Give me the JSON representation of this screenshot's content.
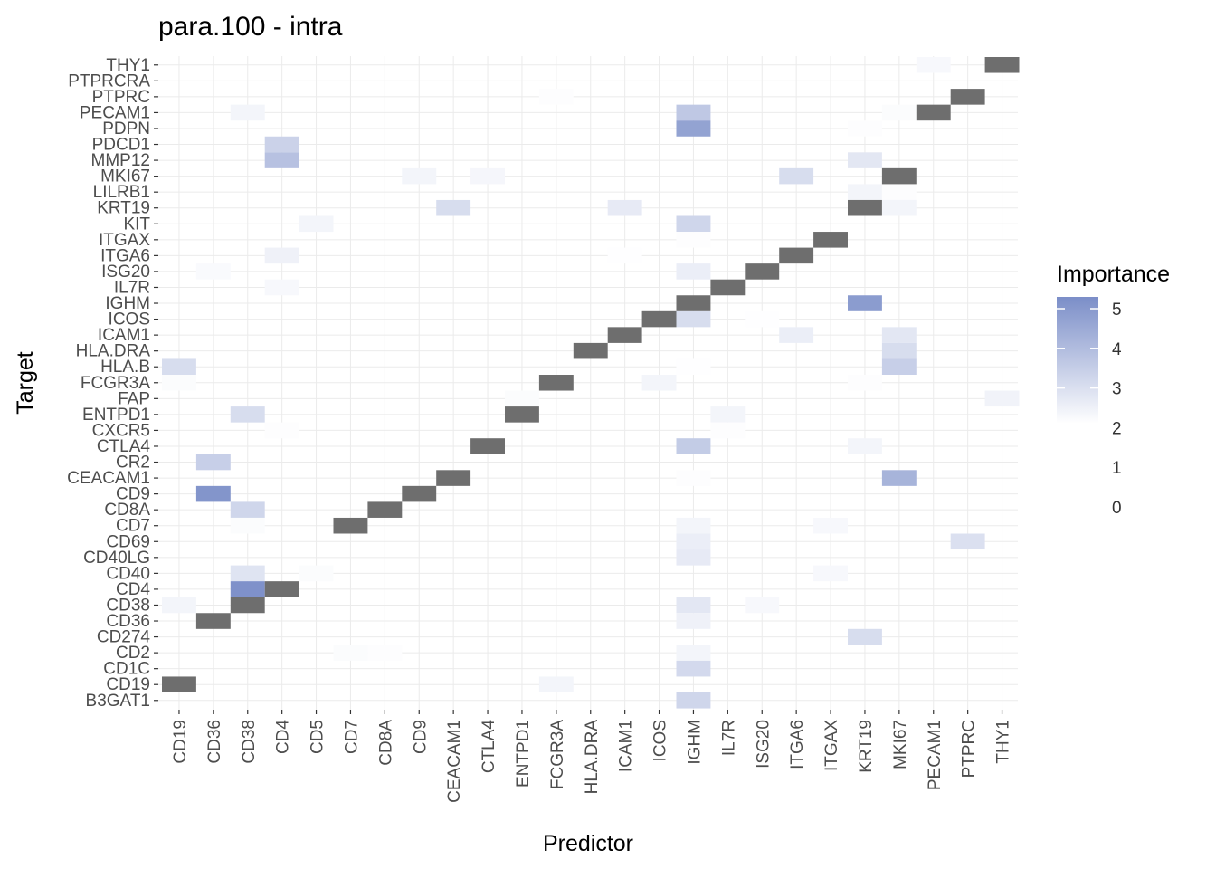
{
  "chart_data": {
    "type": "heatmap",
    "title": "para.100 - intra",
    "xlabel": "Predictor",
    "ylabel": "Target",
    "x_categories": [
      "CD19",
      "CD36",
      "CD38",
      "CD4",
      "CD5",
      "CD7",
      "CD8A",
      "CD9",
      "CEACAM1",
      "CTLA4",
      "ENTPD1",
      "FCGR3A",
      "HLA.DRA",
      "ICAM1",
      "ICOS",
      "IGHM",
      "IL7R",
      "ISG20",
      "ITGA6",
      "ITGAX",
      "KRT19",
      "MKI67",
      "PECAM1",
      "PTPRC",
      "THY1"
    ],
    "y_categories": [
      "THY1",
      "PTPRCRA",
      "PTPRC",
      "PECAM1",
      "PDPN",
      "PDCD1",
      "MMP12",
      "MKI67",
      "LILRB1",
      "KRT19",
      "KIT",
      "ITGAX",
      "ITGA6",
      "ISG20",
      "IL7R",
      "IGHM",
      "ICOS",
      "ICAM1",
      "HLA.DRA",
      "HLA.B",
      "FCGR3A",
      "FAP",
      "ENTPD1",
      "CXCR5",
      "CTLA4",
      "CR2",
      "CEACAM1",
      "CD9",
      "CD8A",
      "CD7",
      "CD69",
      "CD40LG",
      "CD40",
      "CD4",
      "CD38",
      "CD36",
      "CD274",
      "CD2",
      "CD1C",
      "CD19",
      "B3GAT1"
    ],
    "legend": {
      "title": "Importance",
      "ticks": [
        5,
        4,
        3,
        2,
        1,
        0
      ],
      "gradient_min": 2,
      "gradient_max": 5.3,
      "color_low": "#ffffff",
      "color_high": "#7b8ec8",
      "self_color": "#6e6e6e",
      "position": "right"
    },
    "grid": true,
    "self_pairs": [
      [
        "THY1",
        "THY1"
      ],
      [
        "PTPRC",
        "PTPRC"
      ],
      [
        "PECAM1",
        "PECAM1"
      ],
      [
        "MKI67",
        "MKI67"
      ],
      [
        "KRT19",
        "KRT19"
      ],
      [
        "ITGAX",
        "ITGAX"
      ],
      [
        "ITGA6",
        "ITGA6"
      ],
      [
        "ISG20",
        "ISG20"
      ],
      [
        "IL7R",
        "IL7R"
      ],
      [
        "IGHM",
        "IGHM"
      ],
      [
        "ICOS",
        "ICOS"
      ],
      [
        "ICAM1",
        "ICAM1"
      ],
      [
        "HLA.DRA",
        "HLA.DRA"
      ],
      [
        "FCGR3A",
        "FCGR3A"
      ],
      [
        "ENTPD1",
        "ENTPD1"
      ],
      [
        "CTLA4",
        "CTLA4"
      ],
      [
        "CEACAM1",
        "CEACAM1"
      ],
      [
        "CD9",
        "CD9"
      ],
      [
        "CD8A",
        "CD8A"
      ],
      [
        "CD7",
        "CD7"
      ],
      [
        "CD4",
        "CD4"
      ],
      [
        "CD38",
        "CD38"
      ],
      [
        "CD36",
        "CD36"
      ],
      [
        "CD19",
        "CD19"
      ]
    ],
    "cells": [
      {
        "x": "PECAM1",
        "y": "THY1",
        "value": 2.2
      },
      {
        "x": "FCGR3A",
        "y": "PTPRC",
        "value": 2.05
      },
      {
        "x": "CD38",
        "y": "PECAM1",
        "value": 2.3
      },
      {
        "x": "IGHM",
        "y": "PECAM1",
        "value": 3.6
      },
      {
        "x": "MKI67",
        "y": "PECAM1",
        "value": 2.1
      },
      {
        "x": "IGHM",
        "y": "PDPN",
        "value": 4.7
      },
      {
        "x": "KRT19",
        "y": "PDPN",
        "value": 2.05
      },
      {
        "x": "CD4",
        "y": "PDCD1",
        "value": 3.3
      },
      {
        "x": "CD4",
        "y": "MMP12",
        "value": 3.8
      },
      {
        "x": "KRT19",
        "y": "MMP12",
        "value": 2.7
      },
      {
        "x": "CD9",
        "y": "MKI67",
        "value": 2.3
      },
      {
        "x": "CTLA4",
        "y": "MKI67",
        "value": 2.25
      },
      {
        "x": "ITGA6",
        "y": "MKI67",
        "value": 3.0
      },
      {
        "x": "KRT19",
        "y": "LILRB1",
        "value": 2.3
      },
      {
        "x": "MKI67",
        "y": "LILRB1",
        "value": 2.05
      },
      {
        "x": "CEACAM1",
        "y": "KRT19",
        "value": 3.0
      },
      {
        "x": "ICAM1",
        "y": "KRT19",
        "value": 2.6
      },
      {
        "x": "MKI67",
        "y": "KRT19",
        "value": 2.3
      },
      {
        "x": "CD5",
        "y": "KIT",
        "value": 2.3
      },
      {
        "x": "IGHM",
        "y": "KIT",
        "value": 3.2
      },
      {
        "x": "IGHM",
        "y": "ITGAX",
        "value": 2.05
      },
      {
        "x": "CD4",
        "y": "ITGA6",
        "value": 2.4
      },
      {
        "x": "ICAM1",
        "y": "ITGA6",
        "value": 2.02
      },
      {
        "x": "CD36",
        "y": "ISG20",
        "value": 2.15
      },
      {
        "x": "IGHM",
        "y": "ISG20",
        "value": 2.5
      },
      {
        "x": "CD4",
        "y": "IL7R",
        "value": 2.2
      },
      {
        "x": "KRT19",
        "y": "IGHM",
        "value": 4.9
      },
      {
        "x": "IGHM",
        "y": "ICOS",
        "value": 3.0
      },
      {
        "x": "ISG20",
        "y": "ICOS",
        "value": 2.02
      },
      {
        "x": "ITGA6",
        "y": "ICAM1",
        "value": 2.5
      },
      {
        "x": "MKI67",
        "y": "ICAM1",
        "value": 2.7
      },
      {
        "x": "MKI67",
        "y": "HLA.DRA",
        "value": 3.0
      },
      {
        "x": "CD19",
        "y": "HLA.B",
        "value": 3.0
      },
      {
        "x": "MKI67",
        "y": "HLA.B",
        "value": 3.4
      },
      {
        "x": "IGHM",
        "y": "HLA.B",
        "value": 2.02
      },
      {
        "x": "CD19",
        "y": "FCGR3A",
        "value": 2.1
      },
      {
        "x": "ICOS",
        "y": "FCGR3A",
        "value": 2.3
      },
      {
        "x": "KRT19",
        "y": "FCGR3A",
        "value": 2.05
      },
      {
        "x": "THY1",
        "y": "FAP",
        "value": 2.35
      },
      {
        "x": "ENTPD1",
        "y": "FAP",
        "value": 2.1
      },
      {
        "x": "CD38",
        "y": "ENTPD1",
        "value": 3.0
      },
      {
        "x": "IL7R",
        "y": "ENTPD1",
        "value": 2.3
      },
      {
        "x": "CD4",
        "y": "CXCR5",
        "value": 2.05
      },
      {
        "x": "IL7R",
        "y": "CXCR5",
        "value": 2.05
      },
      {
        "x": "IGHM",
        "y": "CTLA4",
        "value": 3.5
      },
      {
        "x": "KRT19",
        "y": "CTLA4",
        "value": 2.3
      },
      {
        "x": "CD36",
        "y": "CR2",
        "value": 3.4
      },
      {
        "x": "IGHM",
        "y": "CEACAM1",
        "value": 2.05
      },
      {
        "x": "MKI67",
        "y": "CEACAM1",
        "value": 4.2
      },
      {
        "x": "CD36",
        "y": "CD9",
        "value": 5.1
      },
      {
        "x": "CD38",
        "y": "CD8A",
        "value": 3.2
      },
      {
        "x": "CD38",
        "y": "CD7",
        "value": 2.1
      },
      {
        "x": "IGHM",
        "y": "CD7",
        "value": 2.3
      },
      {
        "x": "ITGAX",
        "y": "CD7",
        "value": 2.2
      },
      {
        "x": "IGHM",
        "y": "CD69",
        "value": 2.5
      },
      {
        "x": "PTPRC",
        "y": "CD69",
        "value": 2.9
      },
      {
        "x": "IGHM",
        "y": "CD40LG",
        "value": 2.6
      },
      {
        "x": "CD38",
        "y": "CD40",
        "value": 2.8
      },
      {
        "x": "CD5",
        "y": "CD40",
        "value": 2.1
      },
      {
        "x": "ITGAX",
        "y": "CD40",
        "value": 2.2
      },
      {
        "x": "CD38",
        "y": "CD4",
        "value": 5.2
      },
      {
        "x": "CD19",
        "y": "CD38",
        "value": 2.3
      },
      {
        "x": "IGHM",
        "y": "CD38",
        "value": 2.7
      },
      {
        "x": "ISG20",
        "y": "CD38",
        "value": 2.2
      },
      {
        "x": "IGHM",
        "y": "CD36",
        "value": 2.4
      },
      {
        "x": "KRT19",
        "y": "CD274",
        "value": 3.0
      },
      {
        "x": "CD7",
        "y": "CD2",
        "value": 2.1
      },
      {
        "x": "CD8A",
        "y": "CD2",
        "value": 2.05
      },
      {
        "x": "IGHM",
        "y": "CD2",
        "value": 2.3
      },
      {
        "x": "IGHM",
        "y": "CD1C",
        "value": 3.1
      },
      {
        "x": "FCGR3A",
        "y": "CD19",
        "value": 2.3
      },
      {
        "x": "IGHM",
        "y": "B3GAT1",
        "value": 3.2
      }
    ]
  }
}
